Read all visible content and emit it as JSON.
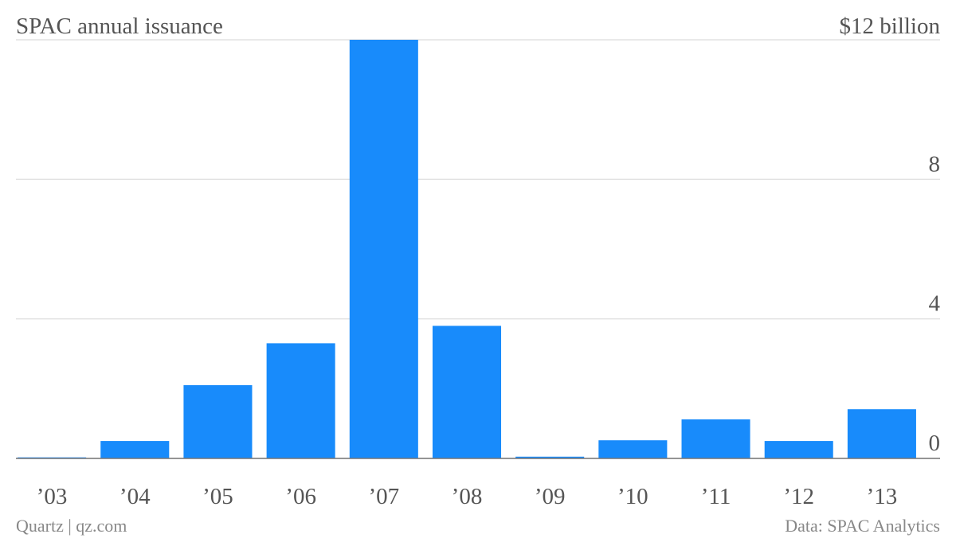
{
  "chart_data": {
    "type": "bar",
    "title": "SPAC annual issuance",
    "categories": [
      "’03",
      "’04",
      "’05",
      "’06",
      "’07",
      "’08",
      "’09",
      "’10",
      "’11",
      "’12",
      "’13"
    ],
    "values": [
      0.03,
      0.5,
      2.1,
      3.3,
      12,
      3.8,
      0.05,
      0.52,
      1.12,
      0.5,
      1.41
    ],
    "color": "#188bfb",
    "ylim": [
      0,
      12
    ],
    "yticks": [
      0,
      4,
      8,
      {
        "value": 12,
        "label": "$12 billion"
      }
    ],
    "grid": true,
    "source": "Data: SPAC Analytics",
    "credit": "Quartz | qz.com"
  }
}
